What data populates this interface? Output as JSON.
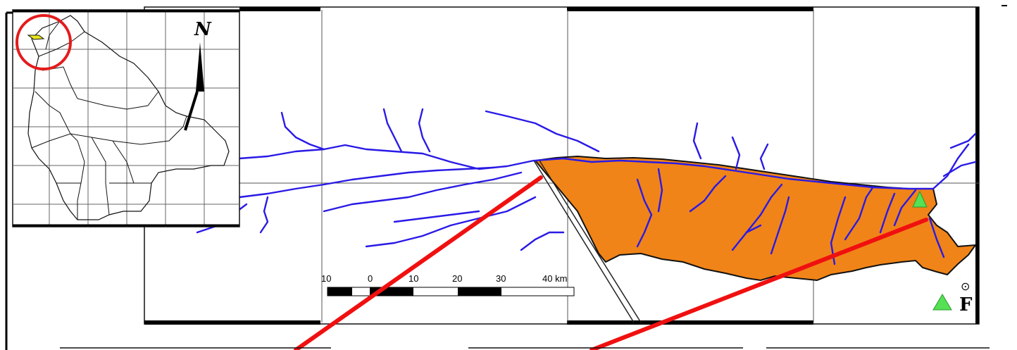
{
  "main_map": {
    "basin_color": "#f08418",
    "river_color": "#2a1ae6",
    "grid_color": "#555555"
  },
  "inset_map": {
    "north_label": "N",
    "highlight_circle_color": "#e41b1b",
    "highlight_area_color": "#e6e61a"
  },
  "scale_bar": {
    "labels": [
      "10",
      "0",
      "10",
      "20",
      "30",
      "40 km"
    ]
  },
  "station_marker": {
    "color": "#55e055",
    "icon": "triangle-icon"
  },
  "legend": {
    "symbol_glyph": "⊙",
    "station_label_partial": "F"
  },
  "callout_lines": {
    "color": "#f01010"
  }
}
